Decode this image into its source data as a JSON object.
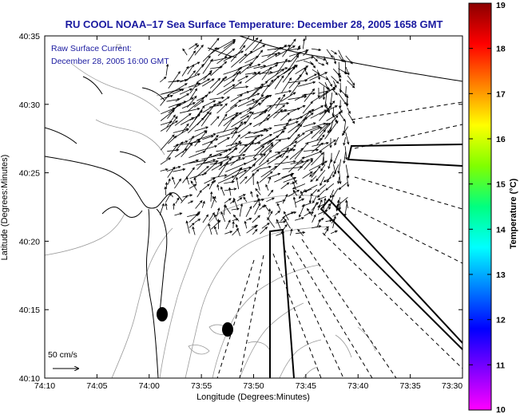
{
  "title": "RU COOL  NOAA–17  Sea Surface Temperature:  December 28, 2005 1658 GMT",
  "legend": {
    "line1": "Raw Surface Current:",
    "line2": "December 28, 2005 16:00 GMT"
  },
  "scale_label": "50 cm/s",
  "x_axis": {
    "label": "Longitude (Degrees:Minutes)",
    "ticks": [
      "74:10",
      "74:05",
      "74:00",
      "73:55",
      "73:50",
      "73:45",
      "73:40",
      "73:35",
      "73:30"
    ]
  },
  "y_axis": {
    "label": "Latitude (Degrees:Minutes)",
    "ticks": [
      "40:35",
      "40:30",
      "40:25",
      "40:20",
      "40:15",
      "40:10"
    ]
  },
  "colorbar": {
    "label": "Temperature (°C)",
    "min": 10,
    "max": 19,
    "ticks": [
      "19",
      "18",
      "17",
      "16",
      "15",
      "14",
      "13",
      "12",
      "11",
      "10"
    ],
    "stops": [
      "#8b0000",
      "#ff0000",
      "#ff8000",
      "#ffff00",
      "#80ff00",
      "#00ff80",
      "#00ffff",
      "#0080ff",
      "#0000ff",
      "#8000ff",
      "#ff00ff"
    ]
  },
  "map": {
    "land_color": "#ffffff",
    "coast_color": "#000000",
    "contour_color": "#9a9a9a",
    "vector_color": "#000000",
    "dots": 2
  }
}
